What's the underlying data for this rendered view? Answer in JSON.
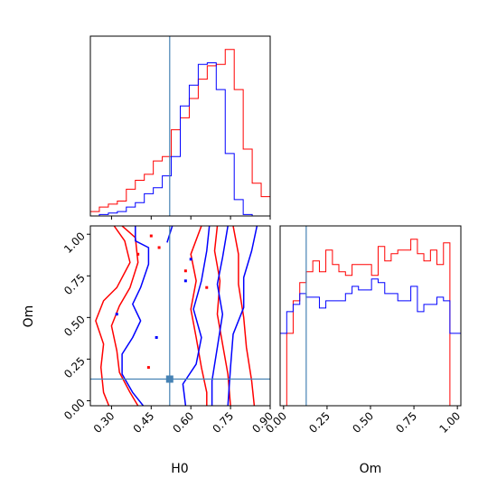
{
  "chart_data": {
    "type": "corner",
    "parameters": [
      "H0",
      "Om"
    ],
    "truth": {
      "H0": 0.52,
      "Om": 0.13
    },
    "truth_color": "#4682b4",
    "series": [
      {
        "color": "#ff0000"
      },
      {
        "color": "#0000ff"
      }
    ],
    "panels": [
      {
        "id": "H0-hist",
        "type": "step-histogram",
        "x_param": "H0",
        "xlim": [
          0.22,
          0.9
        ],
        "x_ticks": [
          0.3,
          0.45,
          0.6,
          0.75,
          0.9
        ],
        "bin_edges": [
          0.22,
          0.254,
          0.288,
          0.322,
          0.356,
          0.39,
          0.424,
          0.458,
          0.492,
          0.526,
          0.56,
          0.594,
          0.628,
          0.662,
          0.696,
          0.73,
          0.764,
          0.798,
          0.832,
          0.866,
          0.9
        ],
        "counts": [
          [
            3,
            6,
            8,
            10,
            18,
            24,
            28,
            37,
            40,
            58,
            66,
            79,
            92,
            101,
            102,
            112,
            85,
            45,
            22,
            13
          ],
          [
            0,
            1,
            2,
            3,
            6,
            9,
            15,
            19,
            27,
            40,
            74,
            88,
            102,
            103,
            85,
            42,
            11,
            1,
            0,
            0
          ]
        ]
      },
      {
        "id": "Om-hist",
        "type": "step-histogram",
        "x_param": "Om",
        "xlim": [
          -0.02,
          1.02
        ],
        "x_ticks": [
          0.0,
          0.25,
          0.5,
          0.75,
          1.0
        ],
        "x_tick_labels": [
          "0.00",
          "0.25",
          "0.50",
          "0.75",
          "1.00"
        ],
        "bin_edges": [
          -0.02,
          0.018,
          0.055,
          0.093,
          0.13,
          0.168,
          0.206,
          0.243,
          0.281,
          0.318,
          0.356,
          0.394,
          0.431,
          0.469,
          0.506,
          0.544,
          0.582,
          0.619,
          0.657,
          0.694,
          0.732,
          0.77,
          0.807,
          0.845,
          0.882,
          0.92,
          0.957,
          0.995,
          1.02
        ],
        "counts": [
          [
            0,
            20,
            29,
            34,
            37,
            40,
            37,
            43,
            39,
            37,
            36,
            39,
            39,
            39,
            36,
            44,
            40,
            42,
            43,
            43,
            46,
            42,
            40,
            43,
            39,
            45,
            0,
            0
          ],
          [
            20,
            26,
            28,
            31,
            30,
            30,
            27,
            29,
            29,
            29,
            31,
            33,
            32,
            32,
            35,
            34,
            31,
            31,
            29,
            29,
            33,
            26,
            28,
            28,
            30,
            29,
            20,
            20
          ]
        ]
      },
      {
        "id": "H0-Om-contour",
        "type": "contour",
        "x_param": "H0",
        "y_param": "Om",
        "xlim": [
          0.22,
          0.9
        ],
        "ylim": [
          -0.03,
          1.05
        ],
        "x_ticks": [
          0.3,
          0.45,
          0.6,
          0.75,
          0.9
        ],
        "x_tick_labels": [
          "0.30",
          "0.45",
          "0.60",
          "0.75",
          "0.90"
        ],
        "y_ticks": [
          0.0,
          0.25,
          0.5,
          0.75,
          1.0
        ],
        "y_tick_labels": [
          "0.00",
          "0.25",
          "0.50",
          "0.75",
          "1.00"
        ],
        "contours": [
          {
            "series": 0,
            "lines": [
              [
                [
                  0.31,
                  1.05
                ],
                [
                  0.35,
                  0.96
                ],
                [
                  0.37,
                  0.83
                ],
                [
                  0.32,
                  0.68
                ],
                [
                  0.27,
                  0.6
                ],
                [
                  0.24,
                  0.48
                ],
                [
                  0.27,
                  0.34
                ],
                [
                  0.26,
                  0.2
                ],
                [
                  0.27,
                  0.05
                ],
                [
                  0.29,
                  -0.03
                ]
              ],
              [
                [
                  0.34,
                  1.05
                ],
                [
                  0.39,
                  0.98
                ],
                [
                  0.4,
                  0.83
                ],
                [
                  0.37,
                  0.68
                ],
                [
                  0.33,
                  0.57
                ],
                [
                  0.3,
                  0.45
                ],
                [
                  0.32,
                  0.3
                ],
                [
                  0.33,
                  0.17
                ],
                [
                  0.37,
                  0.05
                ],
                [
                  0.4,
                  -0.03
                ]
              ],
              [
                [
                  0.64,
                  1.05
                ],
                [
                  0.6,
                  0.88
                ],
                [
                  0.62,
                  0.72
                ],
                [
                  0.6,
                  0.55
                ],
                [
                  0.62,
                  0.38
                ],
                [
                  0.64,
                  0.2
                ],
                [
                  0.66,
                  0.05
                ],
                [
                  0.66,
                  -0.03
                ]
              ],
              [
                [
                  0.7,
                  1.05
                ],
                [
                  0.69,
                  0.9
                ],
                [
                  0.71,
                  0.72
                ],
                [
                  0.7,
                  0.52
                ],
                [
                  0.72,
                  0.34
                ],
                [
                  0.74,
                  0.16
                ],
                [
                  0.75,
                  -0.03
                ]
              ],
              [
                [
                  0.76,
                  1.05
                ],
                [
                  0.78,
                  0.88
                ],
                [
                  0.78,
                  0.7
                ],
                [
                  0.8,
                  0.5
                ],
                [
                  0.81,
                  0.32
                ],
                [
                  0.83,
                  0.12
                ],
                [
                  0.84,
                  -0.03
                ]
              ]
            ],
            "points": [
              [
                0.45,
                0.99
              ],
              [
                0.48,
                0.92
              ],
              [
                0.44,
                0.2
              ],
              [
                0.58,
                0.78
              ],
              [
                0.66,
                0.68
              ],
              [
                0.4,
                0.88
              ]
            ]
          },
          {
            "series": 1,
            "lines": [
              [
                [
                  0.39,
                  1.05
                ],
                [
                  0.39,
                  0.96
                ],
                [
                  0.44,
                  0.92
                ],
                [
                  0.44,
                  0.82
                ],
                [
                  0.41,
                  0.68
                ],
                [
                  0.38,
                  0.58
                ],
                [
                  0.41,
                  0.48
                ],
                [
                  0.38,
                  0.38
                ],
                [
                  0.34,
                  0.28
                ],
                [
                  0.34,
                  0.16
                ],
                [
                  0.38,
                  0.05
                ],
                [
                  0.42,
                  -0.03
                ]
              ],
              [
                [
                  0.53,
                  1.05
                ],
                [
                  0.51,
                  0.95
                ]
              ],
              [
                [
                  0.67,
                  1.05
                ],
                [
                  0.66,
                  0.9
                ],
                [
                  0.64,
                  0.72
                ],
                [
                  0.61,
                  0.55
                ],
                [
                  0.64,
                  0.38
                ],
                [
                  0.62,
                  0.22
                ],
                [
                  0.57,
                  0.1
                ],
                [
                  0.58,
                  -0.03
                ]
              ],
              [
                [
                  0.74,
                  1.05
                ],
                [
                  0.72,
                  0.86
                ],
                [
                  0.7,
                  0.7
                ],
                [
                  0.72,
                  0.52
                ],
                [
                  0.7,
                  0.32
                ],
                [
                  0.68,
                  0.12
                ],
                [
                  0.68,
                  -0.03
                ]
              ],
              [
                [
                  0.85,
                  1.05
                ],
                [
                  0.83,
                  0.9
                ],
                [
                  0.8,
                  0.74
                ],
                [
                  0.8,
                  0.56
                ],
                [
                  0.76,
                  0.4
                ],
                [
                  0.75,
                  0.2
                ],
                [
                  0.74,
                  -0.03
                ]
              ]
            ],
            "points": [
              [
                0.32,
                0.52
              ],
              [
                0.6,
                0.85
              ],
              [
                0.58,
                0.72
              ],
              [
                0.47,
                0.38
              ]
            ]
          }
        ]
      }
    ]
  }
}
